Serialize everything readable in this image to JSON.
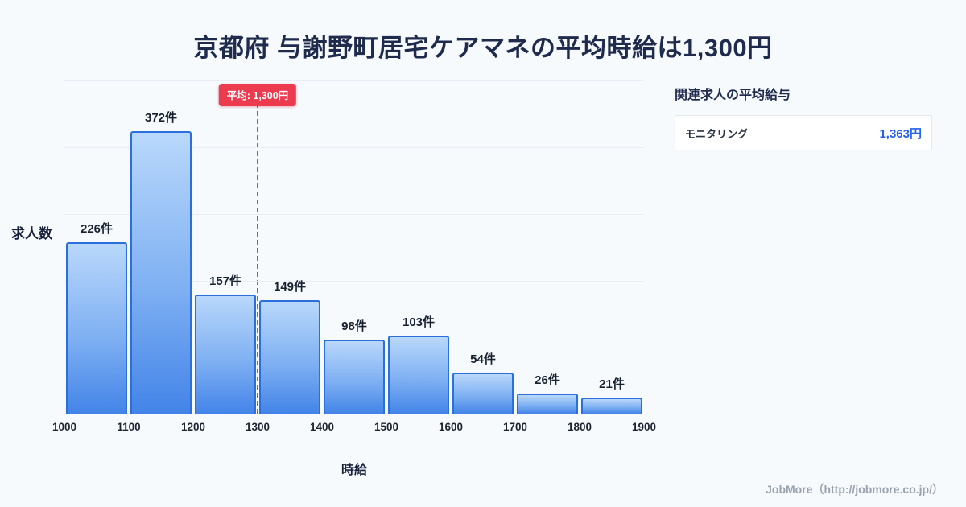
{
  "page": {
    "title": "京都府 与謝野町居宅ケアマネの平均時給は1,300円",
    "footer": "JobMore（http://jobmore.co.jp/）"
  },
  "chart_data": {
    "type": "bar",
    "title": "京都府 与謝野町居宅ケアマネの平均時給は1,300円",
    "xlabel": "時給",
    "ylabel": "求人数",
    "x_ticks": [
      1000,
      1100,
      1200,
      1300,
      1400,
      1500,
      1600,
      1700,
      1800,
      1900
    ],
    "x_range": [
      1000,
      1900
    ],
    "bin_width": 100,
    "values": [
      226,
      372,
      157,
      149,
      98,
      103,
      54,
      26,
      21
    ],
    "bar_labels": [
      "226件",
      "372件",
      "157件",
      "149件",
      "98件",
      "103件",
      "54件",
      "26件",
      "21件"
    ],
    "ylim": [
      0,
      440
    ],
    "grid": true,
    "legend": null,
    "average": {
      "value": 1300,
      "label": "平均: 1,300円"
    },
    "colors": {
      "bar_top": "#b9d8fb",
      "bar_bottom": "#4384e8",
      "bar_border": "#2a6fdb",
      "average_line": "#e23d4d",
      "average_badge_bg": "#ec3a4e",
      "title_text": "#1f2b4d",
      "value_text": "#2563eb",
      "background": "#f7fafd"
    }
  },
  "side_panel": {
    "heading": "関連求人の平均給与",
    "rows": [
      {
        "label": "モニタリング",
        "value": "1,363円"
      }
    ]
  }
}
